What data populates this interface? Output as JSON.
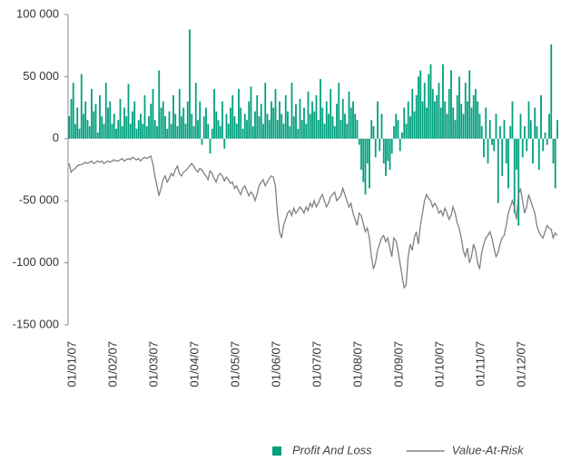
{
  "chart_data": {
    "type": "bar",
    "legend": "bottom-right",
    "ylim": [
      -150000,
      100000
    ],
    "yticks": [
      {
        "value": -150000,
        "label": "-150 000"
      },
      {
        "value": -100000,
        "label": "-100 000"
      },
      {
        "value": -50000,
        "label": "-50 000"
      },
      0,
      {
        "value": 50000,
        "label": "50 000"
      },
      {
        "value": 100000,
        "label": "100 000"
      }
    ],
    "categories": [
      "01/01/07",
      null,
      null,
      null,
      null,
      null,
      null,
      null,
      null,
      null,
      null,
      null,
      null,
      null,
      null,
      null,
      null,
      null,
      null,
      null,
      "01/02/07",
      null,
      null,
      null,
      null,
      null,
      null,
      null,
      null,
      null,
      null,
      null,
      null,
      null,
      null,
      null,
      null,
      null,
      null,
      null,
      "01/03/07",
      null,
      null,
      null,
      null,
      null,
      null,
      null,
      null,
      null,
      null,
      null,
      null,
      null,
      null,
      null,
      null,
      null,
      null,
      null,
      "01/04/07",
      null,
      null,
      null,
      null,
      null,
      null,
      null,
      null,
      null,
      null,
      null,
      null,
      null,
      null,
      null,
      null,
      null,
      null,
      null,
      "01/05/07",
      null,
      null,
      null,
      null,
      null,
      null,
      null,
      null,
      null,
      null,
      null,
      null,
      null,
      null,
      null,
      null,
      null,
      null,
      null,
      "01/06/07",
      null,
      null,
      null,
      null,
      null,
      null,
      null,
      null,
      null,
      null,
      null,
      null,
      null,
      null,
      null,
      null,
      null,
      null,
      null,
      "01/07/07",
      null,
      null,
      null,
      null,
      null,
      null,
      null,
      null,
      null,
      null,
      null,
      null,
      null,
      null,
      null,
      null,
      null,
      null,
      null,
      "01/08/07",
      null,
      null,
      null,
      null,
      null,
      null,
      null,
      null,
      null,
      null,
      null,
      null,
      null,
      null,
      null,
      null,
      null,
      null,
      null,
      "01/09/07",
      null,
      null,
      null,
      null,
      null,
      null,
      null,
      null,
      null,
      null,
      null,
      null,
      null,
      null,
      null,
      null,
      null,
      null,
      null,
      "01/10/07",
      null,
      null,
      null,
      null,
      null,
      null,
      null,
      null,
      null,
      null,
      null,
      null,
      null,
      null,
      null,
      null,
      null,
      null,
      null,
      "01/11/07",
      null,
      null,
      null,
      null,
      null,
      null,
      null,
      null,
      null,
      null,
      null,
      null,
      null,
      null,
      null,
      null,
      null,
      null,
      null,
      "01/12/07",
      null,
      null,
      null,
      null,
      null,
      null,
      null,
      null,
      null,
      null,
      null,
      null,
      null,
      null,
      null,
      null,
      null,
      null,
      null
    ],
    "series": [
      {
        "name": "Profit And Loss",
        "type": "bar",
        "color": "#00a07e",
        "values": [
          18000,
          32000,
          45000,
          12000,
          25000,
          8000,
          52000,
          20000,
          30000,
          15000,
          10000,
          40000,
          22000,
          28000,
          5000,
          35000,
          18000,
          12000,
          45000,
          25000,
          30000,
          12000,
          20000,
          8000,
          15000,
          32000,
          10000,
          25000,
          18000,
          44000,
          12000,
          22000,
          30000,
          8000,
          15000,
          20000,
          12000,
          35000,
          10000,
          18000,
          28000,
          40000,
          15000,
          10000,
          55000,
          25000,
          30000,
          18000,
          8000,
          22000,
          12000,
          35000,
          20000,
          10000,
          40000,
          18000,
          25000,
          12000,
          30000,
          88000,
          20000,
          10000,
          45000,
          15000,
          30000,
          -5000,
          18000,
          25000,
          12000,
          -12000,
          8000,
          40000,
          22000,
          15000,
          10000,
          30000,
          -8000,
          20000,
          12000,
          25000,
          35000,
          18000,
          12000,
          40000,
          25000,
          8000,
          20000,
          15000,
          30000,
          42000,
          10000,
          22000,
          35000,
          18000,
          28000,
          12000,
          45000,
          20000,
          15000,
          30000,
          25000,
          40000,
          15000,
          30000,
          20000,
          12000,
          35000,
          22000,
          10000,
          45000,
          18000,
          28000,
          8000,
          32000,
          15000,
          25000,
          12000,
          38000,
          20000,
          30000,
          22000,
          35000,
          15000,
          48000,
          25000,
          12000,
          30000,
          20000,
          40000,
          18000,
          10000,
          28000,
          45000,
          15000,
          32000,
          20000,
          12000,
          38000,
          25000,
          30000,
          20000,
          15000,
          -5000,
          -25000,
          -35000,
          -45000,
          -20000,
          -40000,
          15000,
          10000,
          -15000,
          30000,
          -10000,
          20000,
          -20000,
          -30000,
          -18000,
          -25000,
          -12000,
          10000,
          20000,
          15000,
          -10000,
          5000,
          25000,
          12000,
          30000,
          18000,
          40000,
          22000,
          35000,
          50000,
          55000,
          30000,
          45000,
          25000,
          52000,
          60000,
          40000,
          30000,
          35000,
          45000,
          25000,
          60000,
          30000,
          20000,
          40000,
          55000,
          25000,
          15000,
          35000,
          50000,
          28000,
          20000,
          45000,
          30000,
          55000,
          25000,
          35000,
          40000,
          30000,
          20000,
          10000,
          -15000,
          25000,
          -20000,
          15000,
          -5000,
          -10000,
          20000,
          -52000,
          10000,
          -30000,
          15000,
          -20000,
          -40000,
          10000,
          30000,
          -60000,
          -25000,
          -70000,
          20000,
          -15000,
          10000,
          -10000,
          30000,
          15000,
          -20000,
          25000,
          10000,
          -25000,
          35000,
          -10000,
          5000,
          -5000,
          20000,
          76000,
          -20000,
          -40000,
          15000
        ]
      },
      {
        "name": "Value-At-Risk",
        "type": "line",
        "color": "#808080",
        "values": [
          -20000,
          -27000,
          -25000,
          -24000,
          -22000,
          -21000,
          -21000,
          -20000,
          -19000,
          -20000,
          -19000,
          -18000,
          -20000,
          -19000,
          -18000,
          -19000,
          -18000,
          -20000,
          -19000,
          -18000,
          -19000,
          -18000,
          -17000,
          -18000,
          -18000,
          -17000,
          -16000,
          -18000,
          -17000,
          -16000,
          -17000,
          -15000,
          -16000,
          -17000,
          -16000,
          -18000,
          -16000,
          -15000,
          -16000,
          -15000,
          -14000,
          -20000,
          -30000,
          -38000,
          -46000,
          -40000,
          -33000,
          -30000,
          -35000,
          -32000,
          -28000,
          -30000,
          -25000,
          -22000,
          -28000,
          -30000,
          -27000,
          -26000,
          -24000,
          -22000,
          -20000,
          -22000,
          -25000,
          -27000,
          -24000,
          -25000,
          -28000,
          -30000,
          -33000,
          -26000,
          -28000,
          -32000,
          -35000,
          -30000,
          -28000,
          -30000,
          -34000,
          -31000,
          -33000,
          -36000,
          -35000,
          -40000,
          -38000,
          -42000,
          -45000,
          -40000,
          -38000,
          -42000,
          -46000,
          -43000,
          -45000,
          -50000,
          -45000,
          -38000,
          -35000,
          -33000,
          -38000,
          -35000,
          -32000,
          -30000,
          -31000,
          -38000,
          -60000,
          -75000,
          -80000,
          -70000,
          -65000,
          -60000,
          -58000,
          -62000,
          -56000,
          -60000,
          -58000,
          -55000,
          -57000,
          -60000,
          -55000,
          -58000,
          -52000,
          -55000,
          -50000,
          -55000,
          -52000,
          -48000,
          -45000,
          -50000,
          -55000,
          -52000,
          -47000,
          -45000,
          -43000,
          -50000,
          -48000,
          -46000,
          -40000,
          -45000,
          -50000,
          -55000,
          -52000,
          -60000,
          -65000,
          -70000,
          -60000,
          -62000,
          -68000,
          -75000,
          -72000,
          -80000,
          -95000,
          -105000,
          -100000,
          -90000,
          -85000,
          -80000,
          -78000,
          -83000,
          -80000,
          -88000,
          -95000,
          -80000,
          -82000,
          -90000,
          -100000,
          -110000,
          -120000,
          -118000,
          -95000,
          -85000,
          -90000,
          -80000,
          -75000,
          -85000,
          -70000,
          -60000,
          -50000,
          -45000,
          -48000,
          -50000,
          -55000,
          -52000,
          -55000,
          -60000,
          -58000,
          -62000,
          -56000,
          -60000,
          -65000,
          -62000,
          -55000,
          -60000,
          -68000,
          -72000,
          -80000,
          -90000,
          -95000,
          -88000,
          -100000,
          -95000,
          -85000,
          -90000,
          -100000,
          -105000,
          -92000,
          -85000,
          -80000,
          -78000,
          -75000,
          -80000,
          -88000,
          -95000,
          -92000,
          -85000,
          -80000,
          -78000,
          -70000,
          -60000,
          -55000,
          -50000,
          -55000,
          -65000,
          -45000,
          -40000,
          -50000,
          -60000,
          -55000,
          -45000,
          -50000,
          -55000,
          -60000,
          -70000,
          -75000,
          -78000,
          -80000,
          -75000,
          -70000,
          -72000,
          -73000,
          -80000,
          -76000,
          -78000
        ]
      }
    ]
  }
}
